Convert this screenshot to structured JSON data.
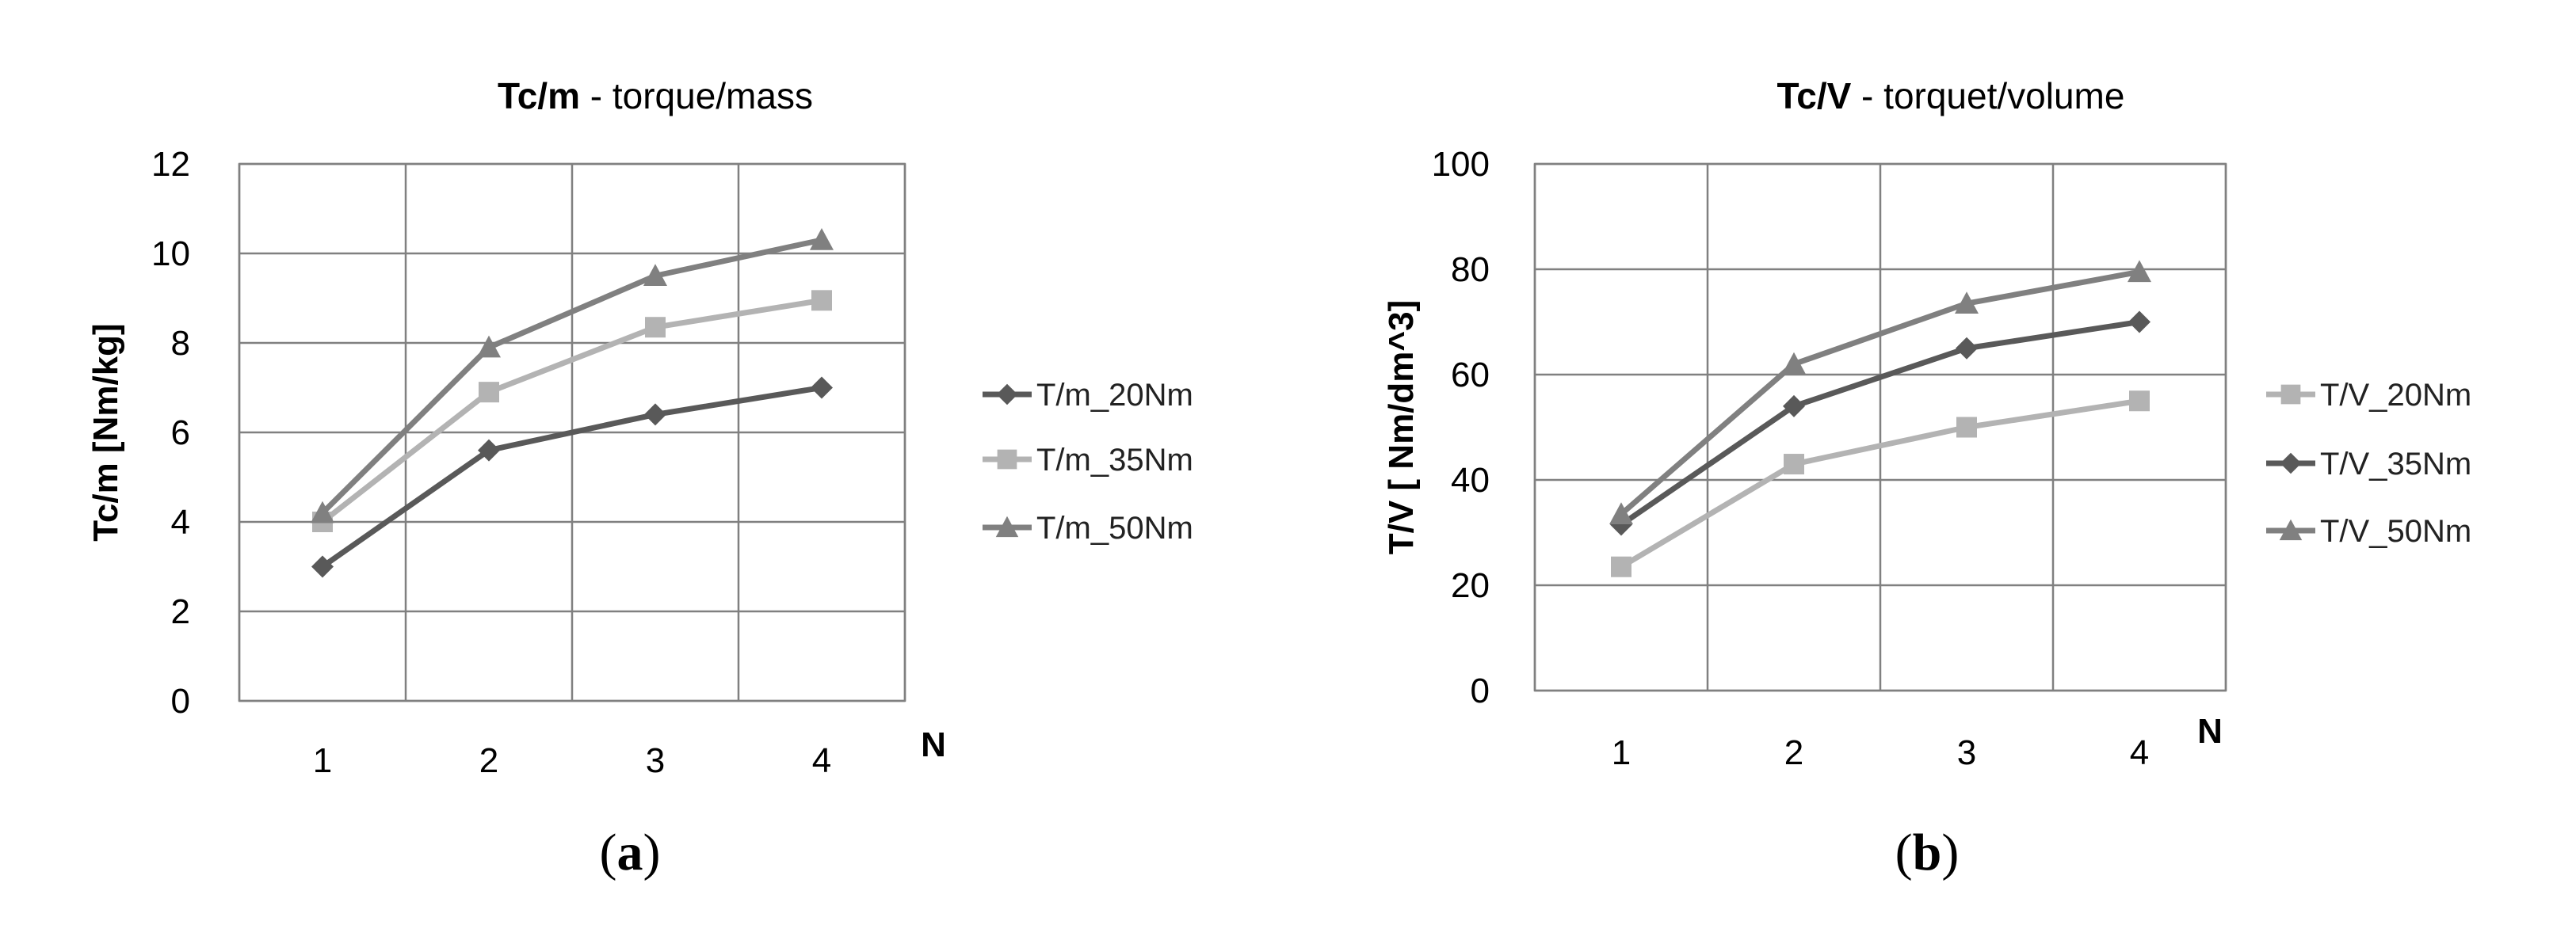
{
  "chart_data": [
    {
      "type": "line",
      "panel": "a",
      "title_bold": "Tc/m",
      "title_rest": " - torque/mass",
      "xlabel": "N",
      "ylabel": "Tc/m [Nm/kg]",
      "caption": "(a)",
      "categories": [
        "1",
        "2",
        "3",
        "4"
      ],
      "ylim": [
        0,
        12
      ],
      "yticks": [
        "0",
        "2",
        "4",
        "6",
        "8",
        "10",
        "12"
      ],
      "grid": true,
      "legend_position": "right",
      "series": [
        {
          "name": "T/m_20Nm",
          "values": [
            3.0,
            5.6,
            6.4,
            7.0
          ],
          "color": "#595959",
          "marker": "diamond"
        },
        {
          "name": "T/m_35Nm",
          "values": [
            4.0,
            6.9,
            8.35,
            8.95
          ],
          "color": "#b3b3b3",
          "marker": "square"
        },
        {
          "name": "T/m_50Nm",
          "values": [
            4.2,
            7.9,
            9.5,
            10.3
          ],
          "color": "#808080",
          "marker": "triangle"
        }
      ]
    },
    {
      "type": "line",
      "panel": "b",
      "title_bold": "Tc/V",
      "title_rest": " - torquet/volume",
      "xlabel": "N",
      "ylabel": "T/V [ Nm/dm^3]",
      "caption": "(b)",
      "categories": [
        "1",
        "2",
        "3",
        "4"
      ],
      "ylim": [
        0,
        100
      ],
      "yticks": [
        "0",
        "20",
        "40",
        "60",
        "80",
        "100"
      ],
      "grid": true,
      "legend_position": "right",
      "series": [
        {
          "name": "T/V_20Nm",
          "values": [
            23.5,
            43.0,
            50.0,
            55.0
          ],
          "color": "#b3b3b3",
          "marker": "square"
        },
        {
          "name": "T/V_35Nm",
          "values": [
            31.5,
            54.0,
            65.0,
            70.0
          ],
          "color": "#595959",
          "marker": "diamond"
        },
        {
          "name": "T/V_50Nm",
          "values": [
            33.5,
            62.0,
            73.5,
            79.5
          ],
          "color": "#808080",
          "marker": "triangle"
        }
      ]
    }
  ]
}
